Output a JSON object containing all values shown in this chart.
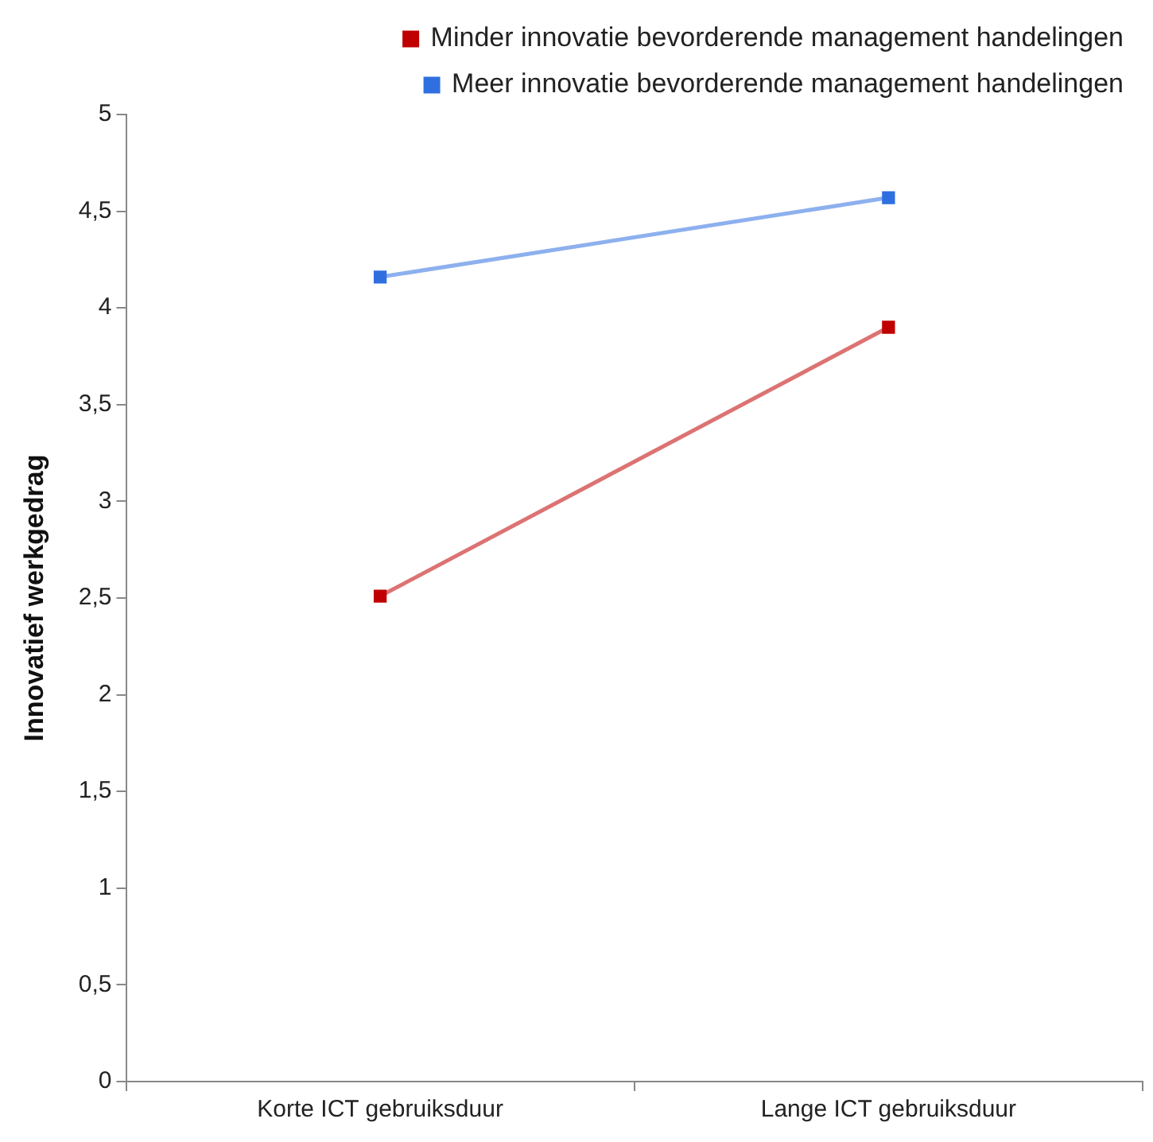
{
  "chart_data": {
    "type": "line",
    "ylabel": "Innovatief werkgedrag",
    "categories": [
      "Korte ICT gebruiksduur",
      "Lange ICT gebruiksduur"
    ],
    "series": [
      {
        "name": "Minder innovatie bevorderende management handelingen",
        "color": "#c00000",
        "values": [
          2.51,
          3.9
        ]
      },
      {
        "name": "Meer innovatie bevorderende management handelingen",
        "color": "#2f6fe0",
        "values": [
          4.16,
          4.57
        ]
      }
    ],
    "ylim": [
      0,
      5
    ],
    "yticks": [
      0,
      {
        "value": 0.5,
        "label": "0,5"
      },
      1,
      {
        "value": 1.5,
        "label": "1,5"
      },
      2,
      {
        "value": 2.5,
        "label": "2,5"
      },
      3,
      {
        "value": 3.5,
        "label": "3,5"
      },
      4,
      {
        "value": 4.5,
        "label": "4,5"
      },
      5
    ],
    "grid": false,
    "legend": "top right",
    "marker": "square",
    "line_style": "solid"
  }
}
